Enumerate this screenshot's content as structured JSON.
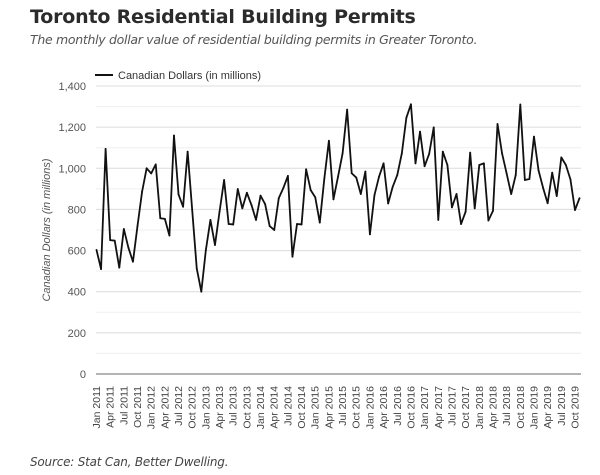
{
  "header": {
    "title": "Toronto Residential Building Permits",
    "subtitle": "The monthly dollar value of residential building permits in Greater Toronto."
  },
  "footer": {
    "source": "Source: Stat Can, Better Dwelling."
  },
  "chart_data": {
    "type": "line",
    "title": "Toronto Residential Building Permits",
    "subtitle": "The monthly dollar value of residential building permits in Greater Toronto.",
    "xlabel": "",
    "ylabel": "Canadian Dollars (in millions)",
    "ylim": [
      0,
      1400
    ],
    "y_ticks": [
      0,
      200,
      400,
      600,
      800,
      1000,
      1200,
      1400
    ],
    "y_tick_labels": [
      "0",
      "200",
      "400",
      "600",
      "800",
      "1,000",
      "1,200",
      "1,400"
    ],
    "minor_gridlines_every": 100,
    "grid": true,
    "legend": {
      "position": "top-left",
      "entries": [
        "Canadian Dollars (in millions)"
      ]
    },
    "series_color": "#111111",
    "x_start": "Jan 2011",
    "x_end": "Nov 2019",
    "x_tick_labels": [
      "Jan 2011",
      "Apr 2011",
      "Jul 2011",
      "Oct 2011",
      "Jan 2012",
      "Apr 2012",
      "Jul 2012",
      "Oct 2012",
      "Jan 2013",
      "Apr 2013",
      "Jul 2013",
      "Oct 2013",
      "Jan 2014",
      "Apr 2014",
      "Jul 2014",
      "Oct 2014",
      "Jan 2015",
      "Apr 2015",
      "Jul 2015",
      "Oct 2015",
      "Jan 2016",
      "Apr 2016",
      "Jul 2016",
      "Oct 2016",
      "Jan 2017",
      "Apr 2017",
      "Jul 2017",
      "Oct 2017",
      "Jan 2018",
      "Apr 2018",
      "Jul 2018",
      "Oct 2018",
      "Jan 2019",
      "Apr 2019",
      "Jul 2019",
      "Oct 2019"
    ],
    "series": [
      {
        "name": "Canadian Dollars (in millions)",
        "values": [
          603,
          510,
          1094,
          651,
          648,
          517,
          705,
          614,
          546,
          720,
          886,
          1000,
          975,
          1019,
          757,
          754,
          673,
          1159,
          873,
          813,
          1081,
          797,
          513,
          400,
          603,
          749,
          627,
          789,
          943,
          729,
          727,
          899,
          805,
          881,
          822,
          749,
          867,
          826,
          719,
          700,
          855,
          904,
          963,
          570,
          729,
          727,
          995,
          894,
          859,
          736,
          951,
          1134,
          849,
          959,
          1072,
          1285,
          976,
          955,
          875,
          984,
          679,
          870,
          959,
          1024,
          829,
          910,
          967,
          1072,
          1246,
          1311,
          1024,
          1178,
          1010,
          1070,
          1199,
          749,
          1081,
          1016,
          810,
          875,
          729,
          789,
          1076,
          805,
          1016,
          1024,
          746,
          793,
          1215,
          1072,
          975,
          875,
          967,
          1310,
          943,
          948,
          1154,
          990,
          905,
          830,
          979,
          865,
          1053,
          1016,
          946,
          797,
          855
        ]
      }
    ]
  }
}
